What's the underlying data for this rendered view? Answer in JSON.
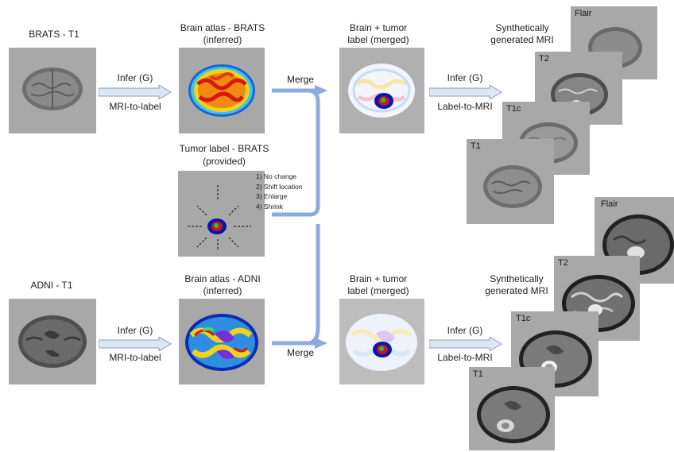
{
  "rows": {
    "brats": {
      "input_title": "BRATS - T1",
      "atlas_title_1": "Brain atlas - BRATS",
      "atlas_title_2": "(inferred)",
      "infer_top": "Infer (G)",
      "infer_bottom": "MRI-to-label",
      "merge": "Merge",
      "merged_title_1": "Brain + tumor",
      "merged_title_2": "label (merged)",
      "infer2_top": "Infer (G)",
      "infer2_bottom": "Label-to-MRI",
      "synth_title_1": "Synthetically",
      "synth_title_2": "generated MRI",
      "mri_tags": [
        "Flair",
        "T2",
        "T1c",
        "T1"
      ]
    },
    "tumor": {
      "title_1": "Tumor label - BRATS",
      "title_2": "(provided)",
      "options": [
        "1) No change",
        "2) Shift location",
        "3) Enlarge",
        "4) Shrink"
      ]
    },
    "adni": {
      "input_title": "ADNI - T1",
      "atlas_title_1": "Brain atlas - ADNI",
      "atlas_title_2": "(inferred)",
      "infer_top": "Infer (G)",
      "infer_bottom": "MRI-to-label",
      "merge": "Merge",
      "merged_title_1": "Brain + tumor",
      "merged_title_2": "label (merged)",
      "infer2_top": "Infer (G)",
      "infer2_bottom": "Label-to-MRI",
      "synth_title_1": "Synthetically",
      "synth_title_2": "generated MRI",
      "mri_tags": [
        "Flair",
        "T2",
        "T1c",
        "T1"
      ]
    }
  },
  "colors": {
    "panel_gray": "#a8a8a8",
    "merge_arrow": "#8eaadb",
    "infer_arrow_fill": "#dde6f3",
    "infer_arrow_stroke": "#8a9bb8"
  }
}
